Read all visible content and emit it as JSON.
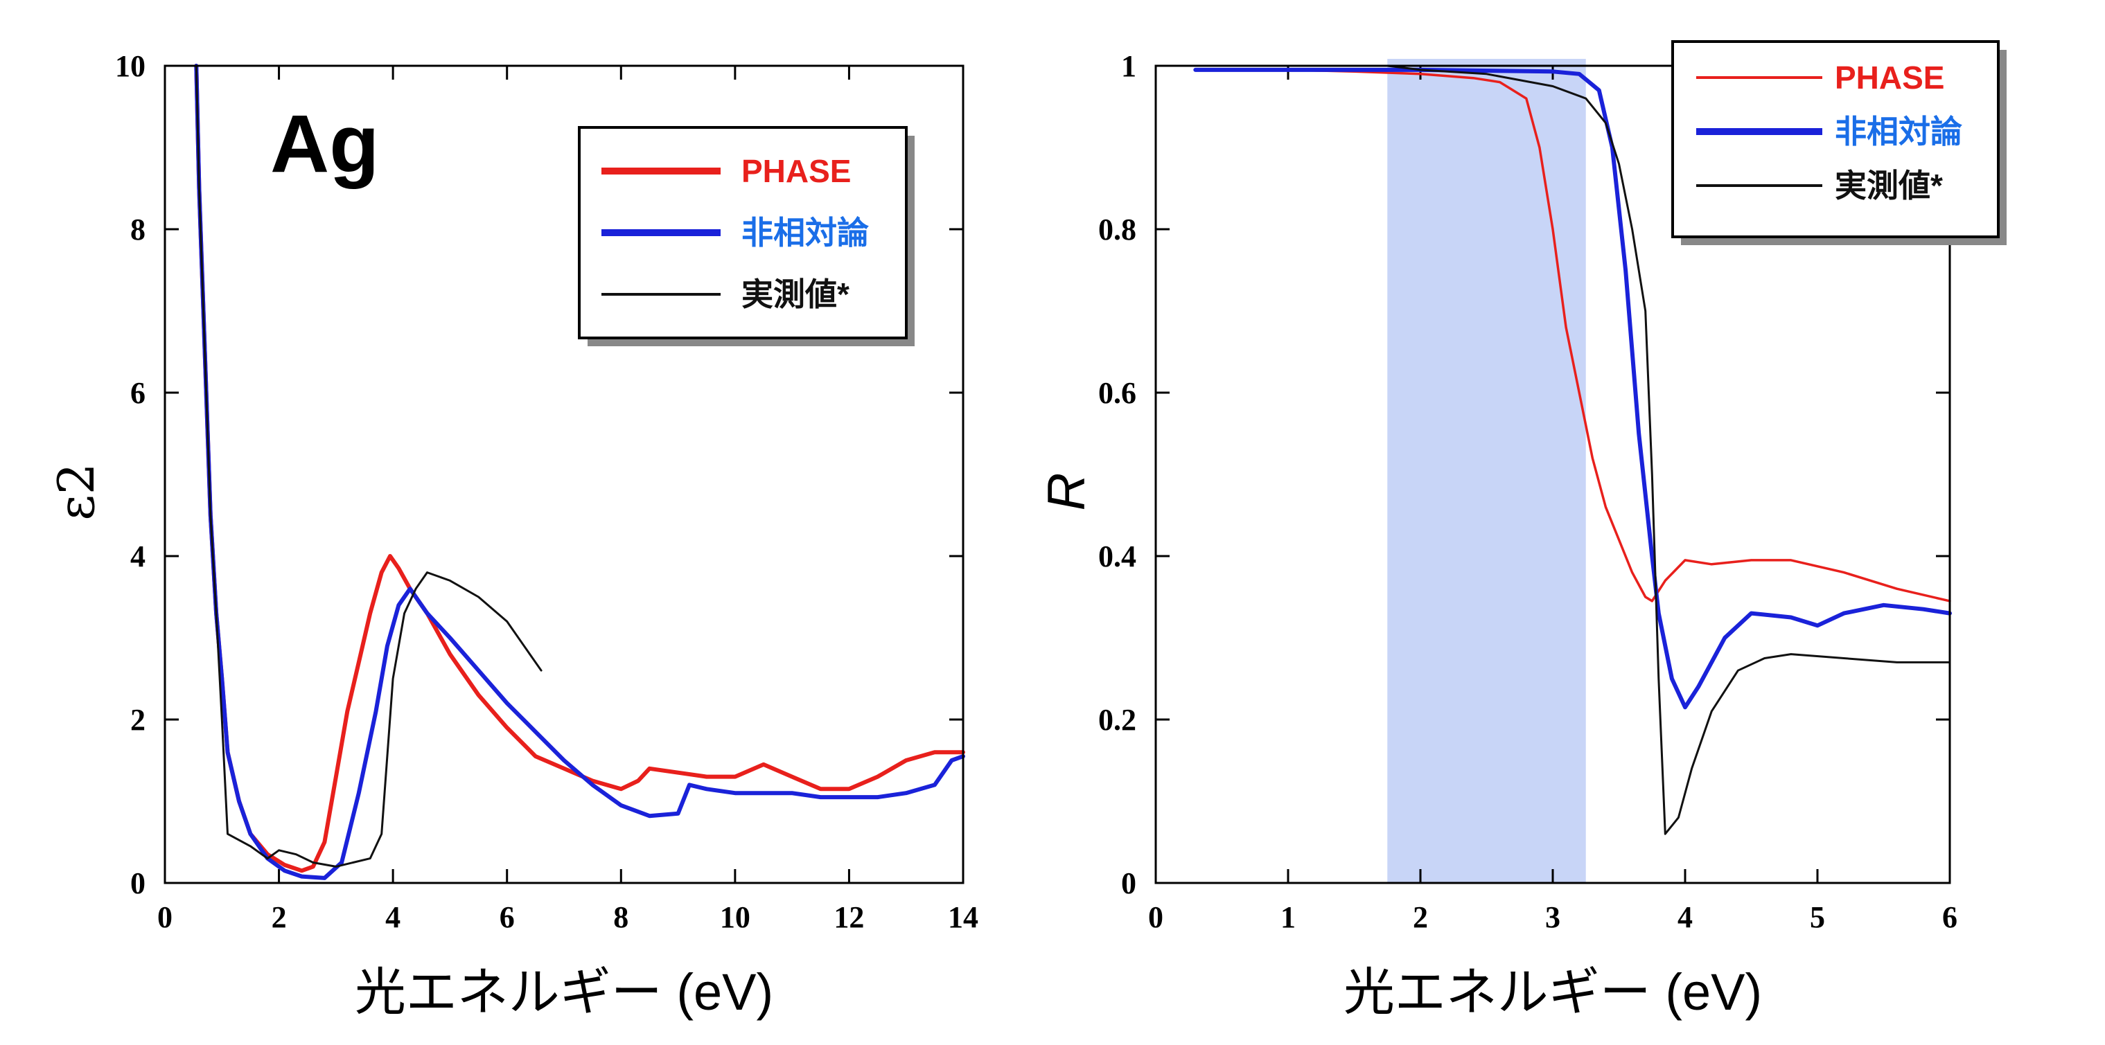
{
  "colors": {
    "PHASE": "#e8201c",
    "nonrel": "#1a22d9",
    "measured": "#111111",
    "highlight": "#c8d5f7",
    "legend_nonrel_text": "#1a6ee8"
  },
  "chart_data": [
    {
      "type": "line",
      "annotation": "Ag",
      "xlabel": "光エネルギー (eV)",
      "ylabel": "ε2",
      "xlim": [
        0,
        14
      ],
      "ylim": [
        0,
        10
      ],
      "xticks": [
        "0",
        "2",
        "4",
        "6",
        "8",
        "10",
        "12",
        "14"
      ],
      "yticks": [
        "0",
        "2",
        "4",
        "6",
        "8",
        "10"
      ],
      "legend_position": "top-right",
      "series": [
        {
          "name": "PHASE",
          "points": [
            [
              0.55,
              10
            ],
            [
              0.6,
              8.5
            ],
            [
              0.7,
              6.5
            ],
            [
              0.8,
              4.5
            ],
            [
              0.9,
              3.3
            ],
            [
              1.0,
              2.5
            ],
            [
              1.1,
              1.6
            ],
            [
              1.3,
              1.0
            ],
            [
              1.5,
              0.6
            ],
            [
              1.8,
              0.35
            ],
            [
              2.1,
              0.22
            ],
            [
              2.4,
              0.15
            ],
            [
              2.6,
              0.2
            ],
            [
              2.8,
              0.5
            ],
            [
              3.0,
              1.3
            ],
            [
              3.2,
              2.1
            ],
            [
              3.4,
              2.7
            ],
            [
              3.6,
              3.3
            ],
            [
              3.8,
              3.8
            ],
            [
              3.95,
              4.0
            ],
            [
              4.1,
              3.85
            ],
            [
              4.3,
              3.6
            ],
            [
              4.6,
              3.3
            ],
            [
              5.0,
              2.8
            ],
            [
              5.5,
              2.3
            ],
            [
              6.0,
              1.9
            ],
            [
              6.5,
              1.55
            ],
            [
              7.0,
              1.4
            ],
            [
              7.5,
              1.25
            ],
            [
              8.0,
              1.15
            ],
            [
              8.3,
              1.25
            ],
            [
              8.5,
              1.4
            ],
            [
              9.0,
              1.35
            ],
            [
              9.5,
              1.3
            ],
            [
              10.0,
              1.3
            ],
            [
              10.5,
              1.45
            ],
            [
              11.0,
              1.3
            ],
            [
              11.5,
              1.15
            ],
            [
              12.0,
              1.15
            ],
            [
              12.5,
              1.3
            ],
            [
              13.0,
              1.5
            ],
            [
              13.5,
              1.6
            ],
            [
              14.0,
              1.6
            ]
          ]
        },
        {
          "name": "非相対論",
          "points": [
            [
              0.55,
              10
            ],
            [
              0.6,
              8.5
            ],
            [
              0.7,
              6.5
            ],
            [
              0.8,
              4.5
            ],
            [
              0.9,
              3.3
            ],
            [
              1.0,
              2.5
            ],
            [
              1.1,
              1.6
            ],
            [
              1.3,
              1.0
            ],
            [
              1.5,
              0.6
            ],
            [
              1.8,
              0.3
            ],
            [
              2.1,
              0.15
            ],
            [
              2.4,
              0.08
            ],
            [
              2.8,
              0.06
            ],
            [
              3.1,
              0.25
            ],
            [
              3.4,
              1.1
            ],
            [
              3.7,
              2.1
            ],
            [
              3.9,
              2.9
            ],
            [
              4.1,
              3.4
            ],
            [
              4.3,
              3.6
            ],
            [
              4.6,
              3.3
            ],
            [
              5.0,
              3.0
            ],
            [
              5.5,
              2.6
            ],
            [
              6.0,
              2.2
            ],
            [
              6.5,
              1.85
            ],
            [
              7.0,
              1.5
            ],
            [
              7.5,
              1.2
            ],
            [
              8.0,
              0.95
            ],
            [
              8.5,
              0.82
            ],
            [
              9.0,
              0.85
            ],
            [
              9.2,
              1.2
            ],
            [
              9.5,
              1.15
            ],
            [
              10.0,
              1.1
            ],
            [
              10.5,
              1.1
            ],
            [
              11.0,
              1.1
            ],
            [
              11.5,
              1.05
            ],
            [
              12.0,
              1.05
            ],
            [
              12.5,
              1.05
            ],
            [
              13.0,
              1.1
            ],
            [
              13.5,
              1.2
            ],
            [
              13.8,
              1.5
            ],
            [
              14.0,
              1.55
            ]
          ]
        },
        {
          "name": "実測値*",
          "points": [
            [
              0.55,
              10
            ],
            [
              0.6,
              8.5
            ],
            [
              0.7,
              6.5
            ],
            [
              0.8,
              4.5
            ],
            [
              0.9,
              3.3
            ],
            [
              1.0,
              2.0
            ],
            [
              1.1,
              0.6
            ],
            [
              1.5,
              0.45
            ],
            [
              1.8,
              0.3
            ],
            [
              2.0,
              0.4
            ],
            [
              2.3,
              0.35
            ],
            [
              2.6,
              0.25
            ],
            [
              3.0,
              0.2
            ],
            [
              3.3,
              0.25
            ],
            [
              3.6,
              0.3
            ],
            [
              3.8,
              0.6
            ],
            [
              4.0,
              2.5
            ],
            [
              4.2,
              3.3
            ],
            [
              4.4,
              3.6
            ],
            [
              4.6,
              3.8
            ],
            [
              5.0,
              3.7
            ],
            [
              5.5,
              3.5
            ],
            [
              6.0,
              3.2
            ],
            [
              6.3,
              2.9
            ],
            [
              6.6,
              2.6
            ]
          ]
        }
      ]
    },
    {
      "type": "line",
      "xlabel": "光エネルギー (eV)",
      "ylabel": "R",
      "xlim": [
        0,
        6
      ],
      "ylim": [
        0,
        1
      ],
      "xticks": [
        "0",
        "1",
        "2",
        "3",
        "4",
        "5",
        "6"
      ],
      "yticks": [
        "0",
        "0.2",
        "0.4",
        "0.6",
        "0.8",
        "1"
      ],
      "highlight_band": [
        1.75,
        3.25
      ],
      "legend_position": "top-right",
      "series": [
        {
          "name": "PHASE",
          "points": [
            [
              0.3,
              0.995
            ],
            [
              1.0,
              0.995
            ],
            [
              1.5,
              0.993
            ],
            [
              2.0,
              0.99
            ],
            [
              2.4,
              0.985
            ],
            [
              2.6,
              0.98
            ],
            [
              2.8,
              0.96
            ],
            [
              2.9,
              0.9
            ],
            [
              3.0,
              0.8
            ],
            [
              3.1,
              0.68
            ],
            [
              3.2,
              0.6
            ],
            [
              3.3,
              0.52
            ],
            [
              3.4,
              0.46
            ],
            [
              3.5,
              0.42
            ],
            [
              3.6,
              0.38
            ],
            [
              3.7,
              0.35
            ],
            [
              3.75,
              0.345
            ],
            [
              3.85,
              0.37
            ],
            [
              4.0,
              0.395
            ],
            [
              4.2,
              0.39
            ],
            [
              4.5,
              0.395
            ],
            [
              4.8,
              0.395
            ],
            [
              5.2,
              0.38
            ],
            [
              5.6,
              0.36
            ],
            [
              6.0,
              0.345
            ]
          ]
        },
        {
          "name": "非相対論",
          "points": [
            [
              0.3,
              0.995
            ],
            [
              1.0,
              0.995
            ],
            [
              2.0,
              0.995
            ],
            [
              3.0,
              0.993
            ],
            [
              3.2,
              0.99
            ],
            [
              3.35,
              0.97
            ],
            [
              3.45,
              0.9
            ],
            [
              3.55,
              0.75
            ],
            [
              3.65,
              0.55
            ],
            [
              3.75,
              0.4
            ],
            [
              3.8,
              0.33
            ],
            [
              3.9,
              0.25
            ],
            [
              4.0,
              0.215
            ],
            [
              4.1,
              0.24
            ],
            [
              4.3,
              0.3
            ],
            [
              4.5,
              0.33
            ],
            [
              4.8,
              0.325
            ],
            [
              5.0,
              0.315
            ],
            [
              5.2,
              0.33
            ],
            [
              5.5,
              0.34
            ],
            [
              5.8,
              0.335
            ],
            [
              6.0,
              0.33
            ]
          ]
        },
        {
          "name": "実測値*",
          "points": [
            [
              1.75,
              1.0
            ],
            [
              2.0,
              0.995
            ],
            [
              2.5,
              0.99
            ],
            [
              3.0,
              0.975
            ],
            [
              3.25,
              0.96
            ],
            [
              3.4,
              0.93
            ],
            [
              3.5,
              0.88
            ],
            [
              3.6,
              0.8
            ],
            [
              3.7,
              0.7
            ],
            [
              3.75,
              0.5
            ],
            [
              3.8,
              0.25
            ],
            [
              3.85,
              0.06
            ],
            [
              3.95,
              0.08
            ],
            [
              4.05,
              0.14
            ],
            [
              4.2,
              0.21
            ],
            [
              4.4,
              0.26
            ],
            [
              4.6,
              0.275
            ],
            [
              4.8,
              0.28
            ],
            [
              5.2,
              0.275
            ],
            [
              5.6,
              0.27
            ],
            [
              6.0,
              0.27
            ]
          ]
        }
      ]
    }
  ]
}
